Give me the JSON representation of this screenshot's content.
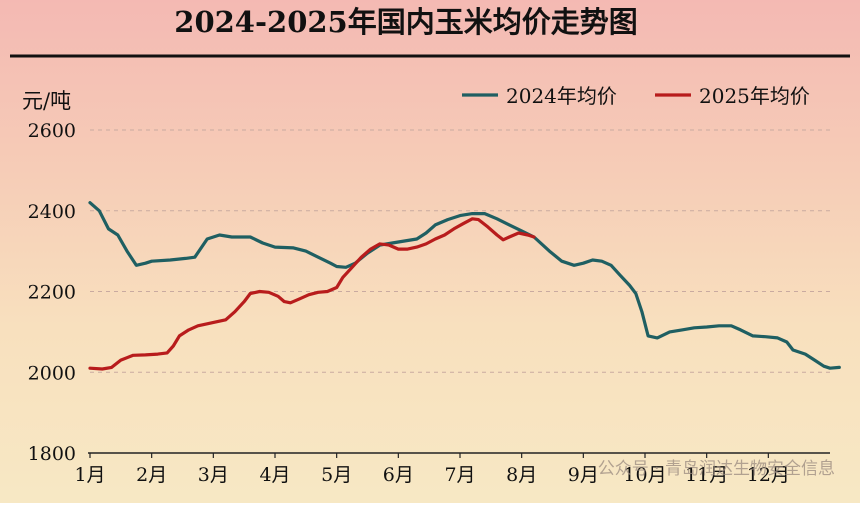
{
  "chart_data": {
    "type": "line",
    "title": "2024-2025年国内玉米均价走势图",
    "ylabel": "元/吨",
    "xlabel": "",
    "ylim": [
      1800,
      2600
    ],
    "yticks": [
      1800,
      2000,
      2200,
      2400,
      2600
    ],
    "xlim": [
      1,
      13
    ],
    "xticks": [
      "1月",
      "2月",
      "3月",
      "4月",
      "5月",
      "6月",
      "7月",
      "8月",
      "9月",
      "10月",
      "11月",
      "12月"
    ],
    "grid": "horizontal dashed",
    "legend_position": "top-right",
    "series": [
      {
        "name": "2024年均价",
        "color": "#1f5f62",
        "points": [
          [
            1.0,
            2420
          ],
          [
            1.15,
            2400
          ],
          [
            1.3,
            2355
          ],
          [
            1.45,
            2340
          ],
          [
            1.6,
            2300
          ],
          [
            1.75,
            2265
          ],
          [
            1.9,
            2270
          ],
          [
            2.0,
            2275
          ],
          [
            2.3,
            2278
          ],
          [
            2.55,
            2282
          ],
          [
            2.7,
            2285
          ],
          [
            2.9,
            2330
          ],
          [
            3.1,
            2340
          ],
          [
            3.3,
            2335
          ],
          [
            3.6,
            2335
          ],
          [
            3.8,
            2320
          ],
          [
            4.0,
            2310
          ],
          [
            4.3,
            2308
          ],
          [
            4.5,
            2300
          ],
          [
            4.7,
            2285
          ],
          [
            4.9,
            2270
          ],
          [
            5.0,
            2262
          ],
          [
            5.15,
            2260
          ],
          [
            5.3,
            2270
          ],
          [
            5.5,
            2295
          ],
          [
            5.7,
            2315
          ],
          [
            5.9,
            2320
          ],
          [
            6.1,
            2325
          ],
          [
            6.3,
            2330
          ],
          [
            6.45,
            2345
          ],
          [
            6.6,
            2365
          ],
          [
            6.8,
            2378
          ],
          [
            7.0,
            2388
          ],
          [
            7.2,
            2393
          ],
          [
            7.4,
            2393
          ],
          [
            7.6,
            2380
          ],
          [
            7.8,
            2365
          ],
          [
            8.0,
            2350
          ],
          [
            8.2,
            2335
          ],
          [
            8.45,
            2300
          ],
          [
            8.65,
            2275
          ],
          [
            8.85,
            2265
          ],
          [
            9.0,
            2270
          ],
          [
            9.15,
            2278
          ],
          [
            9.3,
            2275
          ],
          [
            9.45,
            2265
          ],
          [
            9.6,
            2240
          ],
          [
            9.75,
            2215
          ],
          [
            9.85,
            2195
          ],
          [
            9.95,
            2150
          ],
          [
            10.05,
            2090
          ],
          [
            10.2,
            2085
          ],
          [
            10.4,
            2100
          ],
          [
            10.6,
            2105
          ],
          [
            10.8,
            2110
          ],
          [
            11.0,
            2112
          ],
          [
            11.2,
            2115
          ],
          [
            11.4,
            2115
          ],
          [
            11.55,
            2105
          ],
          [
            11.75,
            2090
          ],
          [
            11.95,
            2088
          ],
          [
            12.15,
            2085
          ],
          [
            12.3,
            2075
          ],
          [
            12.4,
            2055
          ],
          [
            12.6,
            2045
          ],
          [
            12.75,
            2030
          ],
          [
            12.9,
            2015
          ],
          [
            13.0,
            2010
          ],
          [
            13.15,
            2012
          ]
        ]
      },
      {
        "name": "2025年均价",
        "color": "#b81c1c",
        "points": [
          [
            1.0,
            2010
          ],
          [
            1.2,
            2008
          ],
          [
            1.35,
            2012
          ],
          [
            1.5,
            2030
          ],
          [
            1.7,
            2042
          ],
          [
            1.9,
            2043
          ],
          [
            2.1,
            2045
          ],
          [
            2.25,
            2048
          ],
          [
            2.35,
            2065
          ],
          [
            2.45,
            2090
          ],
          [
            2.6,
            2105
          ],
          [
            2.75,
            2115
          ],
          [
            2.9,
            2120
          ],
          [
            3.05,
            2125
          ],
          [
            3.2,
            2130
          ],
          [
            3.35,
            2150
          ],
          [
            3.5,
            2175
          ],
          [
            3.6,
            2195
          ],
          [
            3.75,
            2200
          ],
          [
            3.9,
            2198
          ],
          [
            4.05,
            2188
          ],
          [
            4.15,
            2175
          ],
          [
            4.25,
            2172
          ],
          [
            4.4,
            2182
          ],
          [
            4.55,
            2192
          ],
          [
            4.7,
            2198
          ],
          [
            4.85,
            2200
          ],
          [
            5.0,
            2210
          ],
          [
            5.1,
            2235
          ],
          [
            5.25,
            2260
          ],
          [
            5.4,
            2285
          ],
          [
            5.55,
            2305
          ],
          [
            5.7,
            2318
          ],
          [
            5.85,
            2315
          ],
          [
            6.0,
            2305
          ],
          [
            6.15,
            2305
          ],
          [
            6.3,
            2310
          ],
          [
            6.45,
            2318
          ],
          [
            6.6,
            2330
          ],
          [
            6.75,
            2340
          ],
          [
            6.9,
            2355
          ],
          [
            7.05,
            2368
          ],
          [
            7.2,
            2380
          ],
          [
            7.3,
            2378
          ],
          [
            7.45,
            2360
          ],
          [
            7.6,
            2340
          ],
          [
            7.7,
            2328
          ],
          [
            7.8,
            2335
          ],
          [
            7.95,
            2345
          ],
          [
            8.1,
            2340
          ],
          [
            8.2,
            2335
          ]
        ]
      }
    ]
  },
  "watermark": "公众号 · 青岛润达生物安全信息"
}
